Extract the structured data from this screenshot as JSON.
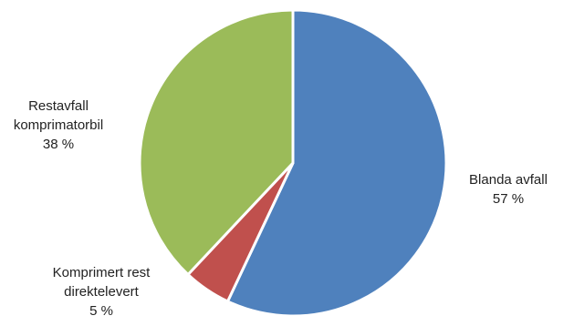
{
  "chart_data": {
    "type": "pie",
    "title": "",
    "slices": [
      {
        "label": "Blanda avfall",
        "value": 57,
        "value_label": "57 %",
        "color": "#4F81BD"
      },
      {
        "label": "Komprimert rest direktelevert",
        "value": 5,
        "value_label": "5 %",
        "color": "#C0504D"
      },
      {
        "label": "Restavfall komprimatorbil",
        "value": 38,
        "value_label": "38 %",
        "color": "#9BBB59"
      }
    ],
    "label_lines": [
      [
        "Blanda avfall",
        "57 %"
      ],
      [
        "Komprimert rest",
        "direktelevert",
        "5 %"
      ],
      [
        "Restavfall",
        "komprimatorbil",
        "38 %"
      ]
    ],
    "start_angle": "12 o'clock",
    "direction": "clockwise",
    "legend": "none",
    "data_labels": "outside"
  }
}
